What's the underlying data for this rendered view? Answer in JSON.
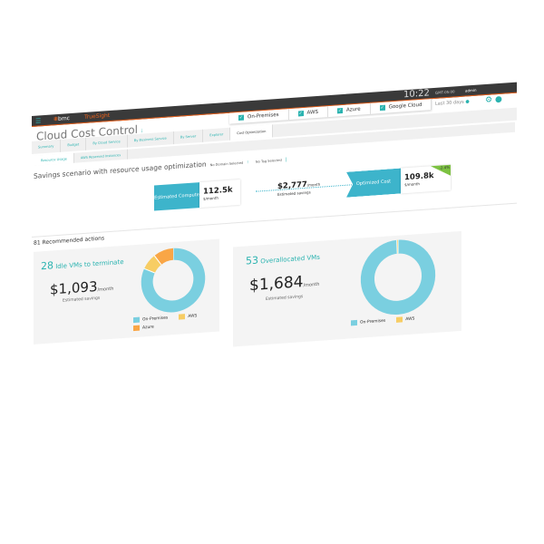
{
  "topbar": {
    "menu_icon": "hamburger-icon",
    "brand": "bmc",
    "product": "TrueSight",
    "time": "10:22",
    "timezone": "GMT-05:00",
    "user": "admin"
  },
  "filters": [
    {
      "label": "On-Premises",
      "checked": true
    },
    {
      "label": "AWS",
      "checked": true
    },
    {
      "label": "Azure",
      "checked": true
    },
    {
      "label": "Google Cloud",
      "checked": true
    }
  ],
  "date_range": "Last 30 days",
  "page_title": "Cloud Cost Control",
  "tabs": [
    {
      "label": "Summary"
    },
    {
      "label": "Budget"
    },
    {
      "label": "By Cloud Service"
    },
    {
      "label": "By Business Service"
    },
    {
      "label": "By Server"
    },
    {
      "label": "Explorer"
    },
    {
      "label": "Cost Optimization",
      "active": true
    }
  ],
  "subtabs": [
    {
      "label": "Resource Usage",
      "active": true
    },
    {
      "label": "AWS Reserved Instances"
    }
  ],
  "savings": {
    "title": "Savings scenario with resource usage optimization",
    "domain": "No Domain Selected",
    "tag": "No Tag Selected",
    "estimated": {
      "label": "Estimated Compute",
      "value": "112.5k",
      "unit": "$/month"
    },
    "saving": {
      "value": "$2,777",
      "unit": "/month",
      "label": "Estimated savings"
    },
    "optimized": {
      "label": "Optimized Cost",
      "value": "109.8k",
      "unit": "$/month",
      "badge": "-2.4%"
    }
  },
  "recommended": "81 Recommended actions",
  "colors": {
    "on_premises": "#7acfe0",
    "aws": "#f7cd64",
    "azure": "#f9a646",
    "accent": "#2bb3b0"
  },
  "cards": [
    {
      "count": "28",
      "title": "Idle VMs to terminate",
      "amount": "$1,093",
      "unit": "/month",
      "est": "Estimated savings",
      "slices": [
        {
          "name": "On-Premises",
          "pct": 82
        },
        {
          "name": "AWS",
          "pct": 8
        },
        {
          "name": "Azure",
          "pct": 10
        }
      ]
    },
    {
      "count": "53",
      "title": "Overallocated VMs",
      "amount": "$1,684",
      "unit": "/month",
      "est": "Estimated savings",
      "slices": [
        {
          "name": "On-Premises",
          "pct": 99.5
        },
        {
          "name": "AWS",
          "pct": 0.5
        }
      ]
    }
  ]
}
